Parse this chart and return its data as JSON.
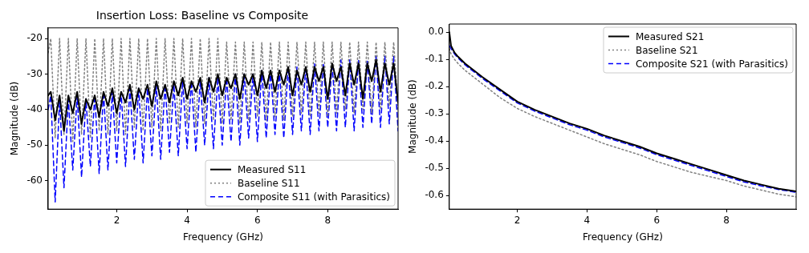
{
  "chart_data": [
    {
      "type": "line",
      "title": "Insertion Loss: Baseline vs Composite",
      "xlabel": "Frequency (GHz)",
      "ylabel": "Magnitude (dB)",
      "x": [
        0.05,
        0.125,
        0.25,
        0.375,
        0.5,
        0.625,
        0.75,
        0.875,
        1,
        1.125,
        1.25,
        1.375,
        1.5,
        1.625,
        1.75,
        1.875,
        2,
        2.125,
        2.25,
        2.375,
        2.5,
        2.625,
        2.75,
        2.875,
        3,
        3.125,
        3.25,
        3.375,
        3.5,
        3.625,
        3.75,
        3.875,
        4,
        4.125,
        4.25,
        4.375,
        4.5,
        4.625,
        4.75,
        4.875,
        5,
        5.125,
        5.25,
        5.375,
        5.5,
        5.625,
        5.75,
        5.875,
        6,
        6.125,
        6.25,
        6.375,
        6.5,
        6.625,
        6.75,
        6.875,
        7,
        7.125,
        7.25,
        7.375,
        7.5,
        7.625,
        7.75,
        7.875,
        8,
        8.125,
        8.25,
        8.375,
        8.5,
        8.625,
        8.75,
        8.875,
        9,
        9.125,
        9.25,
        9.375,
        9.5,
        9.625,
        9.75,
        9.875,
        10
      ],
      "series": [
        {
          "name": "Measured S11",
          "color": "#000000",
          "line_style": "solid",
          "values": [
            -36,
            -35,
            -43,
            -36,
            -46,
            -36,
            -41,
            -35,
            -44,
            -37,
            -40,
            -36,
            -42,
            -35,
            -39,
            -34,
            -41,
            -35,
            -38,
            -33,
            -40,
            -34,
            -37,
            -33,
            -39,
            -32,
            -37,
            -33,
            -38,
            -32,
            -36,
            -31,
            -37,
            -32,
            -35,
            -31,
            -38,
            -31,
            -35,
            -30,
            -36,
            -31,
            -34,
            -30,
            -37,
            -30,
            -33,
            -30,
            -36,
            -29,
            -34,
            -29,
            -35,
            -29,
            -33,
            -28,
            -36,
            -29,
            -33,
            -28,
            -35,
            -28,
            -32,
            -28,
            -37,
            -27,
            -32,
            -28,
            -36,
            -27,
            -33,
            -27,
            -37,
            -27,
            -32,
            -26,
            -35,
            -27,
            -33,
            -27,
            -38
          ]
        },
        {
          "name": "Baseline S11",
          "color": "#808080",
          "line_style": "dotted",
          "values": [
            -24,
            -20,
            -48,
            -20,
            -47,
            -20,
            -49,
            -20,
            -47,
            -20,
            -48,
            -20,
            -46,
            -20,
            -47,
            -20,
            -46,
            -20,
            -47,
            -20,
            -45,
            -20,
            -46,
            -20,
            -45,
            -20,
            -46,
            -20,
            -44,
            -20,
            -45,
            -20,
            -44,
            -20,
            -45,
            -20,
            -44,
            -20,
            -43,
            -20,
            -44,
            -21,
            -43,
            -21,
            -44,
            -21,
            -43,
            -21,
            -42,
            -21,
            -43,
            -21,
            -42,
            -21,
            -43,
            -21,
            -42,
            -21,
            -41,
            -21,
            -42,
            -21,
            -41,
            -21,
            -42,
            -21,
            -41,
            -21,
            -40,
            -21,
            -41,
            -21,
            -40,
            -21,
            -41,
            -21,
            -40,
            -21,
            -39,
            -21,
            -40
          ]
        },
        {
          "name": "Composite S11 (with Parasitics)",
          "color": "#0000ff",
          "line_style": "dashed",
          "values": [
            -40,
            -36,
            -66,
            -37,
            -62,
            -37,
            -57,
            -36,
            -59,
            -37,
            -56,
            -36,
            -58,
            -35,
            -57,
            -35,
            -55,
            -35,
            -56,
            -34,
            -54,
            -34,
            -55,
            -34,
            -53,
            -33,
            -54,
            -33,
            -52,
            -33,
            -53,
            -32,
            -51,
            -32,
            -52,
            -32,
            -50,
            -31,
            -51,
            -31,
            -50,
            -31,
            -49,
            -30,
            -50,
            -30,
            -48,
            -30,
            -49,
            -29,
            -48,
            -29,
            -47,
            -29,
            -48,
            -28,
            -47,
            -28,
            -46,
            -28,
            -47,
            -27,
            -46,
            -27,
            -45,
            -27,
            -46,
            -26,
            -45,
            -26,
            -46,
            -26,
            -45,
            -26,
            -44,
            -25,
            -45,
            -25,
            -44,
            -25,
            -46
          ]
        }
      ],
      "xlim": [
        0.05,
        10
      ],
      "xticks": [
        2,
        4,
        6,
        8
      ],
      "ylim": [
        -68,
        -17
      ],
      "yticks": [
        -60,
        -50,
        -40,
        -30,
        -20
      ],
      "grid": false,
      "legend": "bottom right"
    },
    {
      "type": "line",
      "xlabel": "Frequency (GHz)",
      "ylabel": "Magnitude (dB)",
      "x": [
        0.05,
        0.1,
        0.2,
        0.3,
        0.5,
        0.75,
        1,
        1.5,
        2,
        2.5,
        3,
        3.5,
        4,
        4.5,
        5,
        5.5,
        6,
        6.5,
        7,
        7.5,
        8,
        8.5,
        9,
        9.5,
        10
      ],
      "series": [
        {
          "name": "Measured S21",
          "color": "#000000",
          "line_style": "solid",
          "values": [
            0,
            -0.05,
            -0.075,
            -0.09,
            -0.115,
            -0.14,
            -0.165,
            -0.21,
            -0.255,
            -0.285,
            -0.31,
            -0.335,
            -0.355,
            -0.38,
            -0.4,
            -0.42,
            -0.445,
            -0.465,
            -0.485,
            -0.505,
            -0.525,
            -0.545,
            -0.56,
            -0.575,
            -0.585
          ]
        },
        {
          "name": "Baseline S21",
          "color": "#808080",
          "line_style": "dotted",
          "values": [
            -0.06,
            -0.08,
            -0.1,
            -0.115,
            -0.14,
            -0.165,
            -0.19,
            -0.24,
            -0.28,
            -0.31,
            -0.335,
            -0.36,
            -0.385,
            -0.41,
            -0.43,
            -0.45,
            -0.475,
            -0.495,
            -0.515,
            -0.53,
            -0.545,
            -0.565,
            -0.58,
            -0.595,
            -0.605
          ]
        },
        {
          "name": "Composite S21 (with Parasitics)",
          "color": "#0000ff",
          "line_style": "dashed",
          "values": [
            -0.05,
            -0.06,
            -0.08,
            -0.095,
            -0.12,
            -0.145,
            -0.17,
            -0.215,
            -0.26,
            -0.29,
            -0.315,
            -0.34,
            -0.36,
            -0.385,
            -0.405,
            -0.425,
            -0.45,
            -0.47,
            -0.49,
            -0.51,
            -0.53,
            -0.55,
            -0.565,
            -0.578,
            -0.588
          ]
        }
      ],
      "xlim": [
        0.05,
        10
      ],
      "xticks": [
        2,
        4,
        6,
        8
      ],
      "ylim": [
        -0.65,
        0.03
      ],
      "yticks": [
        -0.6,
        -0.5,
        -0.4,
        -0.3,
        -0.2,
        -0.1,
        {
          "value": 0,
          "label": "0.0"
        }
      ],
      "grid": false,
      "legend": "top right"
    }
  ]
}
